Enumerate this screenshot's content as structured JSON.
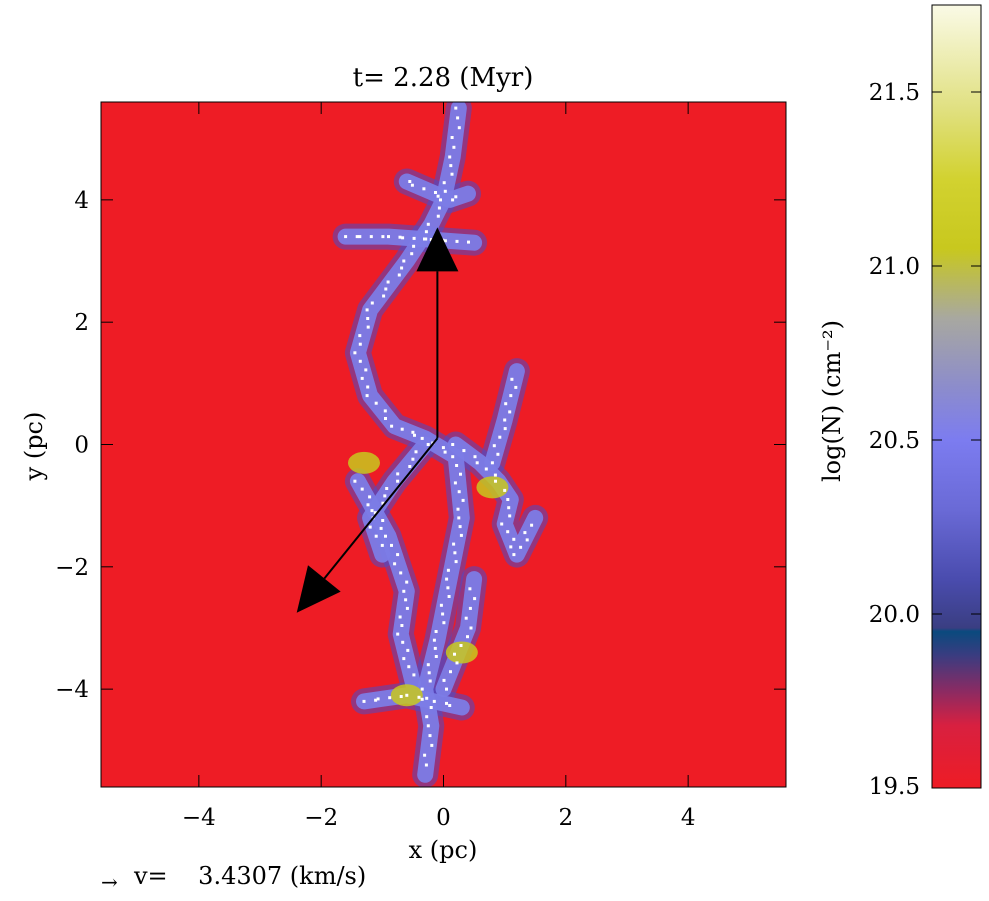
{
  "chart_data": {
    "type": "heatmap",
    "title": "t= 2.28 (Myr)",
    "xlabel": "x (pc)",
    "ylabel": "y (pc)",
    "xlim": [
      -5.6,
      5.6
    ],
    "ylim": [
      -5.6,
      5.6
    ],
    "x_ticks": [
      -4,
      -2,
      0,
      2,
      4
    ],
    "y_ticks": [
      -4,
      -2,
      0,
      2,
      4
    ],
    "x_tick_labels": [
      "−4",
      "−2",
      "0",
      "2",
      "4"
    ],
    "y_tick_labels": [
      "−4",
      "−2",
      "0",
      "2",
      "4"
    ],
    "background_color": "#ee1c25",
    "filament": {
      "spine": [
        [
          0.25,
          5.5
        ],
        [
          0.15,
          4.7
        ],
        [
          0.0,
          4.0
        ],
        [
          -0.2,
          3.6
        ],
        [
          -0.6,
          3.0
        ],
        [
          -1.2,
          2.2
        ],
        [
          -1.4,
          1.5
        ],
        [
          -1.2,
          0.8
        ],
        [
          -0.8,
          0.3
        ],
        [
          -0.3,
          0.1
        ],
        [
          0.2,
          -0.2
        ],
        [
          0.3,
          -1.2
        ],
        [
          0.1,
          -2.2
        ],
        [
          -0.1,
          -3.2
        ],
        [
          -0.3,
          -4.0
        ],
        [
          -0.2,
          -4.6
        ],
        [
          -0.3,
          -5.4
        ]
      ],
      "branches": [
        [
          [
            -1.6,
            3.4
          ],
          [
            -0.9,
            3.4
          ],
          [
            -0.2,
            3.35
          ],
          [
            0.5,
            3.3
          ]
        ],
        [
          [
            -0.6,
            4.3
          ],
          [
            0.1,
            4.0
          ],
          [
            0.4,
            4.1
          ]
        ],
        [
          [
            0.2,
            0.0
          ],
          [
            0.6,
            -0.3
          ],
          [
            0.9,
            -0.6
          ],
          [
            1.1,
            -0.9
          ],
          [
            1.0,
            -1.3
          ],
          [
            1.2,
            -1.8
          ],
          [
            1.5,
            -1.2
          ]
        ],
        [
          [
            0.8,
            -0.3
          ],
          [
            1.0,
            0.4
          ],
          [
            1.2,
            1.2
          ]
        ],
        [
          [
            -0.3,
            0.0
          ],
          [
            -0.8,
            -0.6
          ],
          [
            -1.2,
            -1.2
          ],
          [
            -1.0,
            -1.8
          ]
        ],
        [
          [
            -1.4,
            -0.6
          ],
          [
            -0.9,
            -1.5
          ],
          [
            -0.6,
            -2.4
          ],
          [
            -0.7,
            -3.1
          ],
          [
            -0.5,
            -3.9
          ]
        ],
        [
          [
            -1.3,
            -4.2
          ],
          [
            -0.6,
            -4.1
          ],
          [
            0.3,
            -4.3
          ]
        ],
        [
          [
            0.0,
            -4.0
          ],
          [
            0.4,
            -3.0
          ],
          [
            0.5,
            -2.2
          ]
        ]
      ],
      "dense_regions": [
        [
          -0.6,
          -4.1
        ],
        [
          0.8,
          -0.7
        ],
        [
          -1.3,
          -0.3
        ],
        [
          0.3,
          -3.4
        ]
      ],
      "colors": {
        "body": "#7c7ce6",
        "edge": "#4a4ac8",
        "dense": "#c8c81e",
        "points": "#ffffff"
      }
    },
    "vectors": [
      {
        "from": [
          -0.1,
          0.1
        ],
        "to": [
          -0.1,
          3.55
        ],
        "color": "#000000"
      },
      {
        "from": [
          -0.1,
          0.1
        ],
        "to": [
          -2.4,
          -2.75
        ],
        "color": "#000000"
      }
    ],
    "velocity_scale_label": "v=    3.4307 (km/s)",
    "velocity_arrow_symbol": "→",
    "colorbar": {
      "label": "log(N) (cm⁻²)",
      "range": [
        19.5,
        21.75
      ],
      "ticks": [
        19.5,
        20.0,
        20.5,
        21.0,
        21.5
      ],
      "tick_labels": [
        "19.5",
        "20.0",
        "20.5",
        "21.0",
        "21.5"
      ],
      "stops": [
        [
          19.5,
          "#ee1c25"
        ],
        [
          19.68,
          "#d82040"
        ],
        [
          19.78,
          "#8a2b63"
        ],
        [
          19.88,
          "#3b3c80"
        ],
        [
          19.95,
          "#0a4a7e"
        ],
        [
          19.96,
          "#3a3e82"
        ],
        [
          20.1,
          "#4a4cae"
        ],
        [
          20.3,
          "#6a6ad6"
        ],
        [
          20.5,
          "#7c7cf0"
        ],
        [
          20.65,
          "#8c8ccc"
        ],
        [
          20.85,
          "#a8a8a0"
        ],
        [
          21.05,
          "#c8c81e"
        ],
        [
          21.25,
          "#d2d230"
        ],
        [
          21.45,
          "#e0e080"
        ],
        [
          21.75,
          "#fafae6"
        ]
      ]
    }
  }
}
